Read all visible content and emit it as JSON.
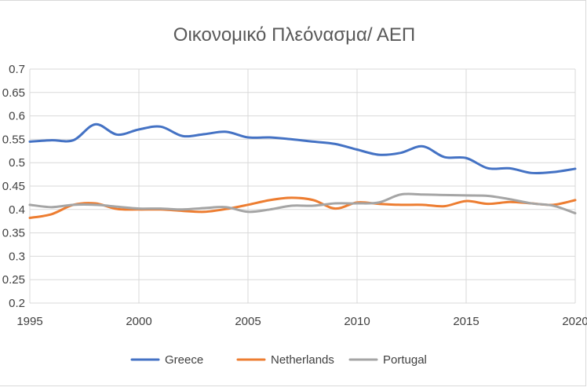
{
  "chart_data": {
    "type": "line",
    "title": "Οικονομικό Πλεόνασμα/ ΑΕΠ",
    "xlabel": "",
    "ylabel": "",
    "xlim": [
      1995,
      2020
    ],
    "ylim": [
      0.2,
      0.7
    ],
    "x_ticks": [
      "1995",
      "2000",
      "2005",
      "2010",
      "2015",
      "2020"
    ],
    "y_ticks": [
      "0.2",
      "0.25",
      "0.3",
      "0.35",
      "0.4",
      "0.45",
      "0.5",
      "0.55",
      "0.6",
      "0.65",
      "0.7"
    ],
    "grid": true,
    "legend_position": "bottom",
    "x": [
      1995,
      1996,
      1997,
      1998,
      1999,
      2000,
      2001,
      2002,
      2003,
      2004,
      2005,
      2006,
      2007,
      2008,
      2009,
      2010,
      2011,
      2012,
      2013,
      2014,
      2015,
      2016,
      2017,
      2018,
      2019,
      2020
    ],
    "series": [
      {
        "name": "Greece",
        "color": "#4472c4",
        "values": [
          0.545,
          0.548,
          0.548,
          0.582,
          0.56,
          0.571,
          0.577,
          0.557,
          0.561,
          0.566,
          0.554,
          0.554,
          0.55,
          0.545,
          0.54,
          0.528,
          0.517,
          0.521,
          0.535,
          0.512,
          0.51,
          0.488,
          0.488,
          0.478,
          0.48,
          0.487
        ]
      },
      {
        "name": "Netherlands",
        "color": "#ed7d31",
        "values": [
          0.382,
          0.39,
          0.41,
          0.413,
          0.401,
          0.4,
          0.4,
          0.397,
          0.395,
          0.401,
          0.41,
          0.42,
          0.425,
          0.42,
          0.402,
          0.415,
          0.412,
          0.41,
          0.41,
          0.407,
          0.418,
          0.412,
          0.416,
          0.413,
          0.41,
          0.42
        ]
      },
      {
        "name": "Portugal",
        "color": "#a5a5a5",
        "values": [
          0.41,
          0.405,
          0.41,
          0.41,
          0.406,
          0.402,
          0.402,
          0.4,
          0.403,
          0.405,
          0.395,
          0.4,
          0.408,
          0.408,
          0.413,
          0.413,
          0.415,
          0.432,
          0.432,
          0.431,
          0.43,
          0.429,
          0.422,
          0.413,
          0.408,
          0.392
        ]
      }
    ]
  }
}
